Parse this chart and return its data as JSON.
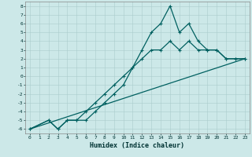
{
  "title": "",
  "xlabel": "Humidex (Indice chaleur)",
  "bg_color": "#cce8e8",
  "grid_color": "#aacccc",
  "line_color": "#006060",
  "xlim": [
    -0.5,
    23.5
  ],
  "ylim": [
    -6.5,
    8.5
  ],
  "xticks": [
    0,
    1,
    2,
    3,
    4,
    5,
    6,
    7,
    8,
    9,
    10,
    11,
    12,
    13,
    14,
    15,
    16,
    17,
    18,
    19,
    20,
    21,
    22,
    23
  ],
  "yticks": [
    -6,
    -5,
    -4,
    -3,
    -2,
    -1,
    0,
    1,
    2,
    3,
    4,
    5,
    6,
    7,
    8
  ],
  "line1_x": [
    0,
    2,
    3,
    4,
    5,
    6,
    7,
    8,
    9,
    10,
    11,
    12,
    13,
    14,
    15,
    16,
    17,
    18,
    19,
    20,
    21,
    22,
    23
  ],
  "line1_y": [
    -6,
    -5,
    -6,
    -5,
    -5,
    -5,
    -4,
    -3,
    -2,
    -1,
    1,
    3,
    5,
    6,
    8,
    5,
    6,
    4,
    3,
    3,
    2,
    2,
    2
  ],
  "line2_x": [
    0,
    2,
    3,
    4,
    5,
    6,
    7,
    8,
    9,
    10,
    11,
    12,
    13,
    14,
    15,
    16,
    17,
    18,
    19,
    20,
    21,
    22,
    23
  ],
  "line2_y": [
    -6,
    -5,
    -6,
    -5,
    -5,
    -4,
    -3,
    -2,
    -1,
    0,
    1,
    2,
    3,
    3,
    4,
    3,
    4,
    3,
    3,
    3,
    2,
    2,
    2
  ],
  "line3_x": [
    0,
    23
  ],
  "line3_y": [
    -6,
    2
  ],
  "xlabel_fontsize": 6,
  "tick_fontsize": 4.5,
  "linewidth": 0.9,
  "marker_size": 2.5
}
